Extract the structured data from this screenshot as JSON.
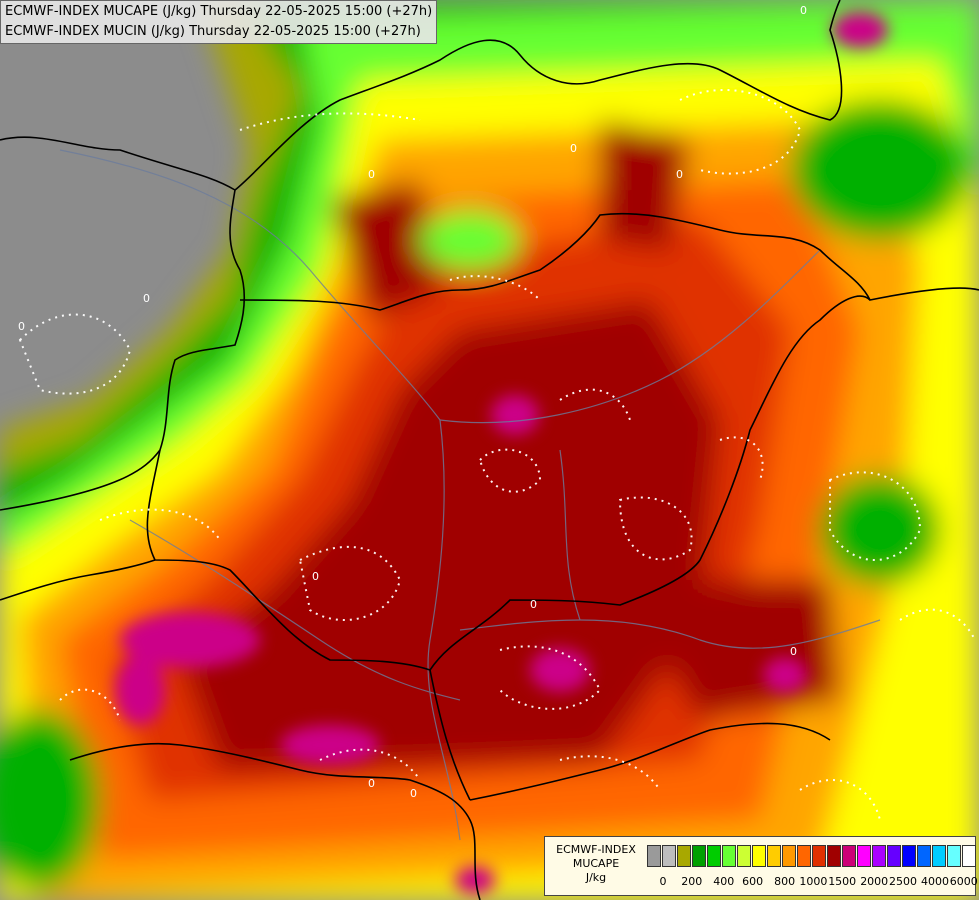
{
  "header": {
    "line1": "ECMWF-INDEX MUCAPE (J/kg) Thursday 22-05-2025 15:00 (+27h)",
    "line2": "ECMWF-INDEX MUCIN (J/kg) Thursday 22-05-2025 15:00 (+27h)"
  },
  "legend": {
    "line1": "ECMWF-INDEX",
    "line2": "MUCAPE",
    "line3": "J/kg",
    "colors": [
      "#9a9a9a",
      "#bdbdbd",
      "#a8a800",
      "#00a000",
      "#00cc00",
      "#66ff33",
      "#ccff33",
      "#ffff00",
      "#ffcc00",
      "#ff9900",
      "#ff6600",
      "#e03000",
      "#a00000",
      "#cc0077",
      "#ff00ff",
      "#aa00ff",
      "#6600ff",
      "#0000ff",
      "#0066ff",
      "#00ccff",
      "#66ffff",
      "#ffffff"
    ],
    "ticks": [
      "0",
      "200",
      "400",
      "600",
      "800",
      "1000",
      "1500",
      "2000",
      "2500",
      "4000",
      "6000"
    ]
  },
  "map": {
    "contour_label": "0",
    "colors": {
      "background": "#8c8c8c",
      "olive": "#a8a800",
      "green": "#00b000",
      "lightgreen": "#66ff33",
      "yellowgreen": "#ccff33",
      "yellow": "#ffff00",
      "orange": "#ffa500",
      "darkorange": "#ff6600",
      "red": "#e03000",
      "darkred": "#a00000",
      "magenta": "#cc0088"
    }
  }
}
